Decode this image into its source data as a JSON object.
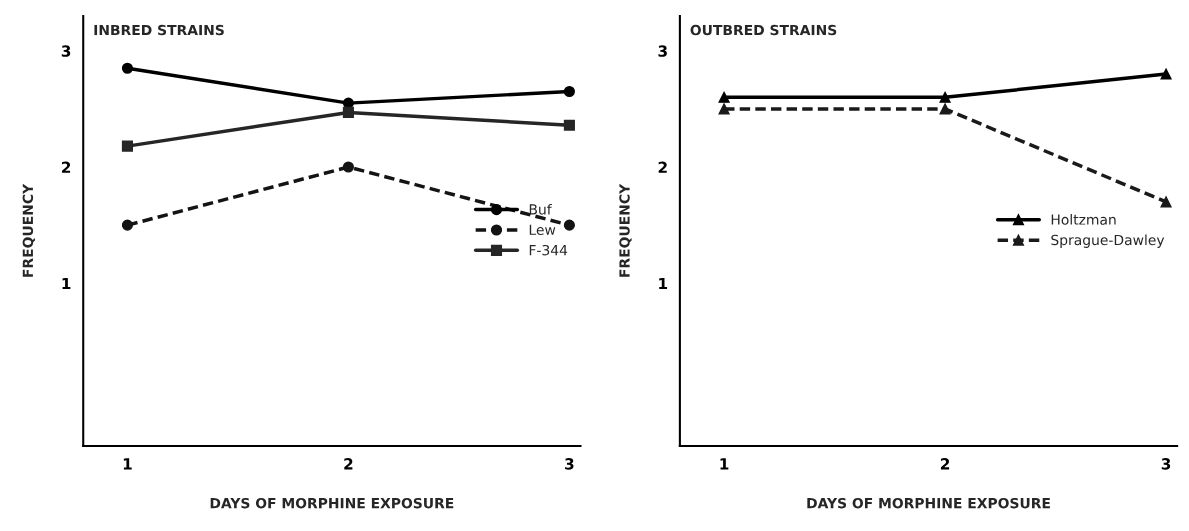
{
  "chart_data": [
    {
      "type": "line",
      "title": "INBRED STRAINS",
      "xlabel": "DAYS OF MORPHINE EXPOSURE",
      "ylabel": "FREQUENCY",
      "x": [
        1,
        2,
        3
      ],
      "series": [
        {
          "name": "Buf",
          "color": "#000000",
          "values": [
            2.85,
            2.55,
            2.65
          ],
          "marker": "circle",
          "line_style": "solid"
        },
        {
          "name": "Lew",
          "color": "#141414",
          "values": [
            1.5,
            2.0,
            1.5
          ],
          "marker": "circle",
          "line_style": "dashed"
        },
        {
          "name": "F-344",
          "color": "#262626",
          "values": [
            2.18,
            2.47,
            2.36
          ],
          "marker": "square",
          "line_style": "solid"
        }
      ],
      "xlim": [
        0.8,
        3.05
      ],
      "xticks": [
        1,
        2,
        3
      ],
      "ylim": [
        -0.4,
        3.3
      ],
      "yticks": [
        1,
        2,
        3
      ],
      "grid": false,
      "legend": "right"
    },
    {
      "type": "line",
      "title": "OUTBRED STRAINS",
      "xlabel": "DAYS OF MORPHINE EXPOSURE",
      "ylabel": "FREQUENCY",
      "x": [
        1,
        2,
        3
      ],
      "series": [
        {
          "name": "Holtzman",
          "color": "#000000",
          "values": [
            2.6,
            2.6,
            2.8
          ],
          "marker": "triangle",
          "line_style": "solid"
        },
        {
          "name": "Sprague-Dawley",
          "color": "#1a1a1a",
          "values": [
            2.5,
            2.5,
            1.7
          ],
          "marker": "triangle",
          "line_style": "dashed"
        }
      ],
      "xlim": [
        0.8,
        3.05
      ],
      "xticks": [
        1,
        2,
        3
      ],
      "ylim": [
        -0.4,
        3.3
      ],
      "yticks": [
        1,
        2,
        3
      ],
      "grid": false,
      "legend": "right"
    }
  ]
}
